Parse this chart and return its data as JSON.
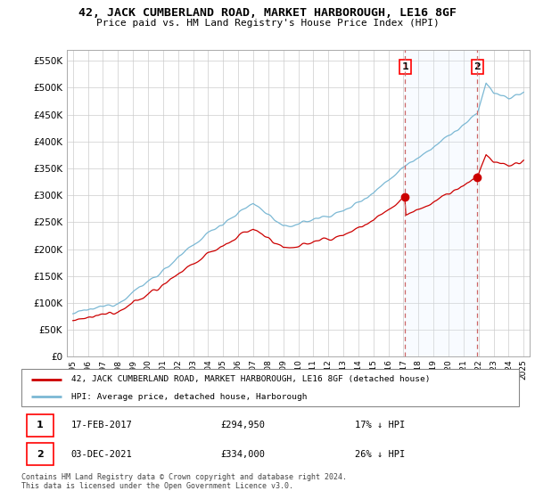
{
  "title": "42, JACK CUMBERLAND ROAD, MARKET HARBOROUGH, LE16 8GF",
  "subtitle": "Price paid vs. HM Land Registry's House Price Index (HPI)",
  "hpi_label": "HPI: Average price, detached house, Harborough",
  "property_label": "42, JACK CUMBERLAND ROAD, MARKET HARBOROUGH, LE16 8GF (detached house)",
  "transaction1_date": "17-FEB-2017",
  "transaction1_price": 294950,
  "transaction1_hpi_pct": "17% ↓ HPI",
  "transaction2_date": "03-DEC-2021",
  "transaction2_price": 334000,
  "transaction2_hpi_pct": "26% ↓ HPI",
  "footer": "Contains HM Land Registry data © Crown copyright and database right 2024.\nThis data is licensed under the Open Government Licence v3.0.",
  "hpi_color": "#7bb8d4",
  "property_color": "#cc0000",
  "shade_color": "#ddeeff",
  "background_color": "#ffffff",
  "ylim": [
    0,
    570000
  ],
  "yticks": [
    0,
    50000,
    100000,
    150000,
    200000,
    250000,
    300000,
    350000,
    400000,
    450000,
    500000,
    550000
  ],
  "transaction1_x": 2017.12,
  "transaction2_x": 2021.92,
  "xmin": 1995,
  "xmax": 2025
}
